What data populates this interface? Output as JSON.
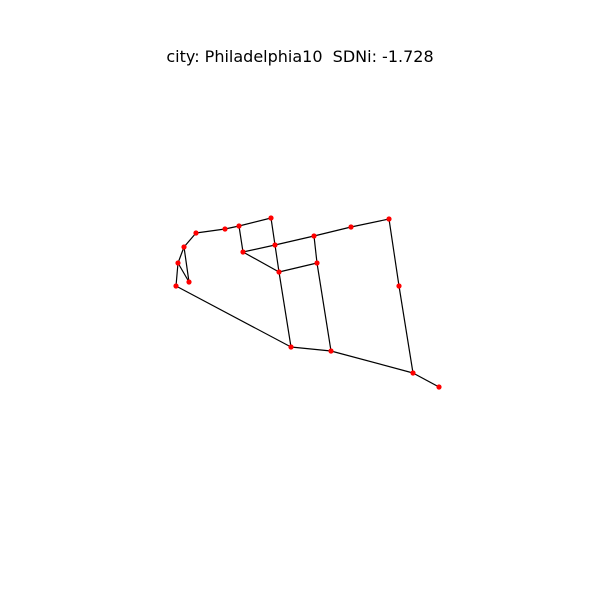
{
  "title": "city: Philadelphia10  SDNi: -1.728",
  "colors": {
    "node": "#ff0000",
    "edge": "#000000",
    "background": "#ffffff"
  },
  "graph": {
    "nodes": [
      {
        "id": "n1"
      },
      {
        "id": "n2"
      },
      {
        "id": "n3"
      },
      {
        "id": "n4"
      },
      {
        "id": "n5"
      },
      {
        "id": "n6"
      },
      {
        "id": "n7"
      },
      {
        "id": "n8"
      },
      {
        "id": "n9"
      },
      {
        "id": "n10"
      },
      {
        "id": "n11"
      },
      {
        "id": "n12"
      },
      {
        "id": "n13"
      },
      {
        "id": "n14"
      },
      {
        "id": "n15"
      },
      {
        "id": "n16"
      },
      {
        "id": "n17"
      },
      {
        "id": "n18"
      },
      {
        "id": "n19"
      },
      {
        "id": "n20"
      },
      {
        "id": "n21"
      }
    ],
    "edges": [
      [
        "n1",
        "n2"
      ],
      [
        "n2",
        "n3"
      ],
      [
        "n3",
        "n4"
      ],
      [
        "n4",
        "n5"
      ],
      [
        "n5",
        "n6"
      ],
      [
        "n6",
        "n7"
      ],
      [
        "n7",
        "n8"
      ],
      [
        "n8",
        "n9"
      ],
      [
        "n9",
        "n10"
      ],
      [
        "n10",
        "n11"
      ],
      [
        "n11",
        "n12"
      ],
      [
        "n12",
        "n13"
      ],
      [
        "n13",
        "n14"
      ],
      [
        "n14",
        "n15"
      ],
      [
        "n15",
        "n16"
      ],
      [
        "n16",
        "n17"
      ],
      [
        "n17",
        "n18"
      ],
      [
        "n18",
        "n19"
      ],
      [
        "n19",
        "n20"
      ],
      [
        "n20",
        "n21"
      ],
      [
        "n21",
        "n1"
      ]
    ]
  }
}
